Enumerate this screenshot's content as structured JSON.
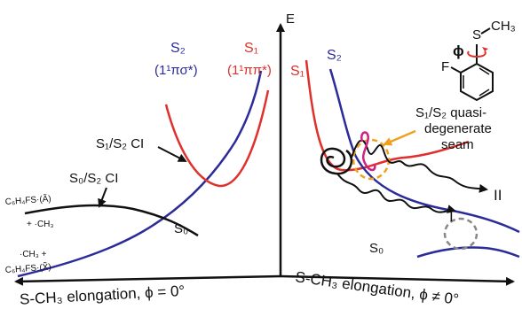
{
  "axis": {
    "energy_label": "E",
    "left_axis_label": "S-CH₃ elongation, ϕ = 0°",
    "right_axis_label": "S-CH₃ elongation, ϕ ≠ 0°"
  },
  "left_panel": {
    "s2_label": "S₂",
    "s2_sub": "(1¹πσ*)",
    "s1_label": "S₁",
    "s1_sub": "(1¹ππ*)",
    "s1s2_ci": "S₁/S₂ CI",
    "s0s2_ci": "S₀/S₂ CI",
    "s0_label": "S₀",
    "product_upper_1": "C₆H₄FS·(Ã)",
    "product_upper_2": "+ ·CH₃",
    "product_lower_1": "·CH₃ +",
    "product_lower_2": "C₆H₄FS·(X̃)"
  },
  "right_panel": {
    "s1_label": "S₁",
    "s2_label": "S₂",
    "s0_label": "S₀",
    "seam_line1": "S₁/S₂ quasi-",
    "seam_line2": "degenerate",
    "seam_line3": "seam",
    "path_I": "I",
    "path_II": "II"
  },
  "molecule": {
    "phi": "ϕ",
    "s_atom": "S",
    "ch3": "CH₃",
    "f_atom": "F"
  },
  "colors": {
    "s2": "#2b2b9a",
    "s1": "#e0302c",
    "s0": "#111111",
    "seam": "#f0a020",
    "circle": "#888888",
    "twist": "#d02080"
  }
}
